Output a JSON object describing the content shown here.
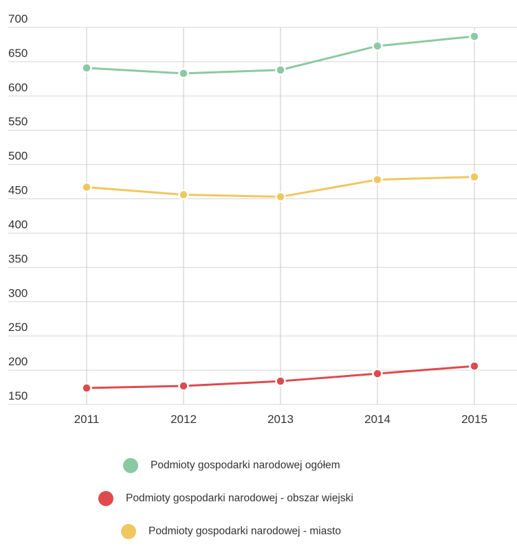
{
  "chart_data": {
    "type": "line",
    "x": [
      "2011",
      "2012",
      "2013",
      "2014",
      "2015"
    ],
    "ylim": [
      150,
      700
    ],
    "yticks": [
      150,
      200,
      250,
      300,
      350,
      400,
      450,
      500,
      550,
      600,
      650,
      700
    ],
    "grid": true,
    "legend_position": "bottom",
    "series": [
      {
        "name": "Podmioty gospodarki narodowej ogółem",
        "color": "#8cc9a2",
        "values": [
          641,
          633,
          638,
          673,
          687
        ]
      },
      {
        "name": "Podmioty gospodarki narodowej - obszar wiejski",
        "color": "#dd4b4d",
        "values": [
          174,
          177,
          184,
          195,
          206
        ]
      },
      {
        "name": "Podmioty gospodarki narodowej - miasto",
        "color": "#f0c75e",
        "values": [
          467,
          456,
          453,
          478,
          482
        ]
      }
    ]
  },
  "legend": {
    "items": [
      {
        "label": "Podmioty gospodarki narodowej ogółem",
        "color": "#8cc9a2"
      },
      {
        "label": "Podmioty gospodarki narodowej - obszar wiejski",
        "color": "#dd4b4d"
      },
      {
        "label": "Podmioty gospodarki narodowej - miasto",
        "color": "#f0c75e"
      }
    ]
  }
}
